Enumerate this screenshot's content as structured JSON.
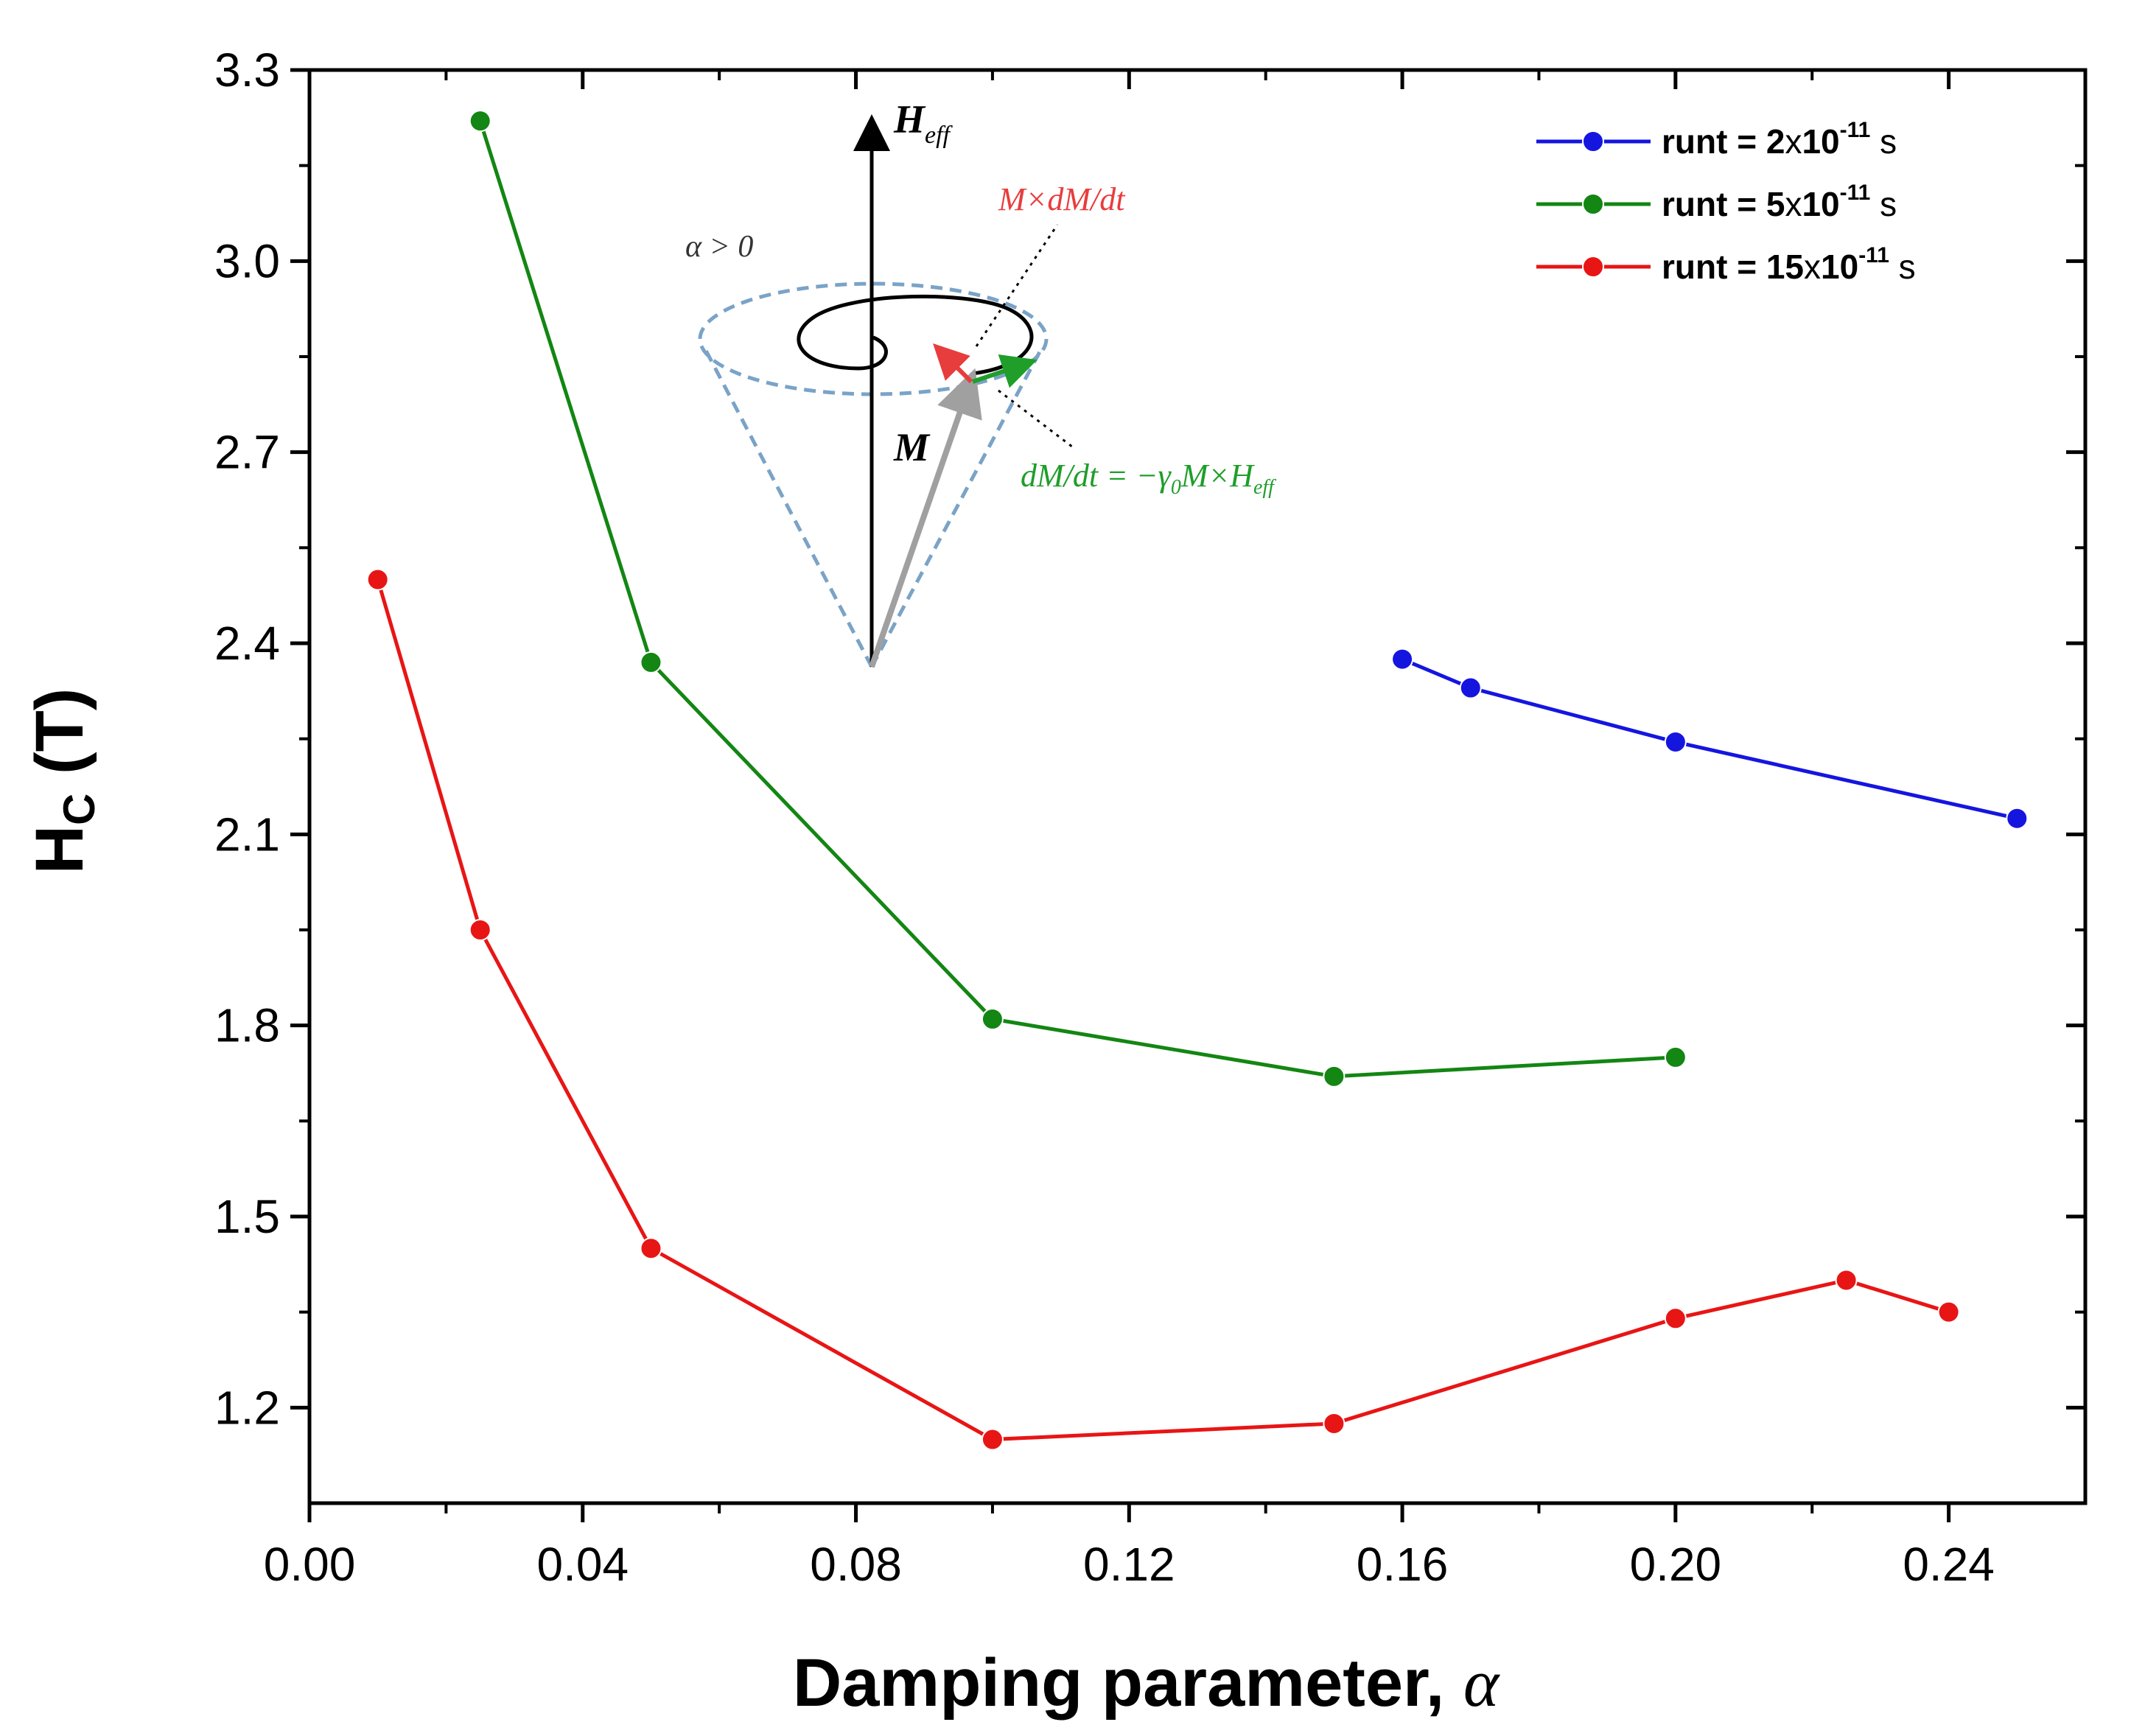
{
  "chart_data": {
    "type": "line",
    "xlabel": "Damping parameter, ",
    "xlabel_symbol": "α",
    "ylabel_main": "H",
    "ylabel_sub": "C",
    "ylabel_unit": " (T)",
    "xlim": [
      0.0,
      0.26
    ],
    "ylim": [
      1.05,
      3.3
    ],
    "xticks": [
      0.0,
      0.04,
      0.08,
      0.12,
      0.16,
      0.2,
      0.24
    ],
    "xtick_labels": [
      "0.00",
      "0.04",
      "0.08",
      "0.12",
      "0.16",
      "0.20",
      "0.24"
    ],
    "yticks": [
      1.2,
      1.5,
      1.8,
      2.1,
      2.4,
      2.7,
      3.0,
      3.3
    ],
    "ytick_labels": [
      "1.2",
      "1.5",
      "1.8",
      "2.1",
      "2.4",
      "2.7",
      "3.0",
      "3.3"
    ],
    "legend_position": "top-right",
    "series": [
      {
        "name": "runt = 2x10-11 s",
        "legend_parts": [
          "runt = 2",
          "x",
          "10",
          "-11",
          " s"
        ],
        "color": "#1515e0",
        "x": [
          0.16,
          0.17,
          0.2,
          0.25
        ],
        "y": [
          2.375,
          2.33,
          2.245,
          2.125
        ]
      },
      {
        "name": "runt = 5x10-11 s",
        "legend_parts": [
          "runt = 5",
          "x",
          "10",
          "-11",
          " s"
        ],
        "color": "#138613",
        "x": [
          0.025,
          0.05,
          0.1,
          0.15,
          0.2
        ],
        "y": [
          3.22,
          2.37,
          1.81,
          1.72,
          1.75
        ]
      },
      {
        "name": "runt = 15x10-11 s",
        "legend_parts": [
          "runt = 15",
          "x",
          "10",
          "-11",
          " s"
        ],
        "color": "#e81515",
        "x": [
          0.01,
          0.025,
          0.05,
          0.1,
          0.15,
          0.2,
          0.225,
          0.24
        ],
        "y": [
          2.5,
          1.95,
          1.45,
          1.15,
          1.175,
          1.34,
          1.4,
          1.35
        ]
      }
    ],
    "inset": {
      "alpha_label": "α > 0",
      "heff_label": "H",
      "heff_sub": "eff",
      "m_label": "M",
      "mdm_label": "M×dM/dt",
      "precession_label": "dM/dt = −γ",
      "precession_sub": "0",
      "precession_tail": "M×H",
      "precession_tail_sub": "eff",
      "colors": {
        "precession": "#1f9e2a",
        "damping": "#e83d3d",
        "cone": "#7aa3c7",
        "m_vector": "#a0a0a0"
      }
    }
  }
}
